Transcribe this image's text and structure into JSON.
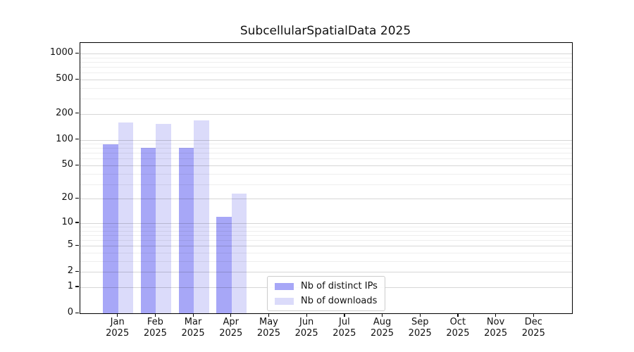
{
  "title": "SubcellularSpatialData 2025",
  "chart_data": {
    "type": "bar",
    "title": "SubcellularSpatialData 2025",
    "categories": [
      "Jan",
      "Feb",
      "Mar",
      "Apr",
      "May",
      "Jun",
      "Jul",
      "Aug",
      "Sep",
      "Oct",
      "Nov",
      "Dec"
    ],
    "year_label": "2025",
    "series": [
      {
        "name": "Nb of distinct IPs",
        "color": "#a7a7f7",
        "values": [
          88,
          81,
          81,
          12,
          0,
          0,
          0,
          0,
          0,
          0,
          0,
          0
        ]
      },
      {
        "name": "Nb of downloads",
        "color": "#dbdbfa",
        "values": [
          158,
          152,
          167,
          23,
          0,
          0,
          0,
          0,
          0,
          0,
          0,
          0
        ]
      }
    ],
    "yticks": [
      0,
      1,
      2,
      5,
      10,
      20,
      50,
      100,
      200,
      500,
      1000
    ],
    "minor_gridlines": [
      3,
      4,
      6,
      7,
      8,
      9,
      30,
      40,
      60,
      70,
      80,
      90,
      300,
      400,
      600,
      700,
      800,
      900
    ],
    "yscale": "log1p",
    "ylim": [
      0,
      1316
    ],
    "xlabel": "",
    "ylabel": "",
    "grid": "both",
    "legend_position": "lower-center"
  }
}
